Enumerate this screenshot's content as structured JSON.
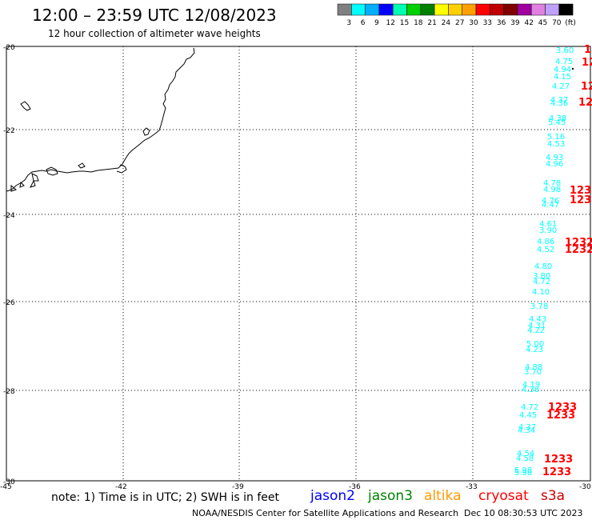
{
  "header": {
    "title": "12:00 – 23:59 UTC 12/08/2023",
    "subtitle": "12 hour collection of altimeter wave heights"
  },
  "colorbar": {
    "colors": [
      "#808080",
      "#00ffff",
      "#00b0ff",
      "#0000ff",
      "#00ffb0",
      "#00d000",
      "#008000",
      "#ffff00",
      "#ffd000",
      "#ffa000",
      "#ff0000",
      "#c00000",
      "#800000",
      "#a000a0",
      "#e080e0",
      "#c0a0ff",
      "#000000"
    ],
    "labels": [
      "3",
      "6",
      "9",
      "12",
      "15",
      "18",
      "21",
      "24",
      "27",
      "30",
      "33",
      "36",
      "39",
      "42",
      "45",
      "70",
      "(ft)"
    ]
  },
  "axes": {
    "lat_labels": [
      "-20",
      "-22",
      "-24",
      "-26",
      "-28",
      "-30"
    ],
    "lon_labels": [
      "-45",
      "-42",
      "-39",
      "-36",
      "-33",
      "-30"
    ]
  },
  "track_cyan": [
    {
      "text": "3.60",
      "color": "#00ffff"
    },
    {
      "text": "4.75",
      "color": "#00ffff"
    },
    {
      "text": "4.94",
      "color": "#00ffff"
    },
    {
      "text": "4.15",
      "color": "#00ffff"
    },
    {
      "text": "4.27",
      "color": "#00ffff"
    },
    {
      "text": "4.37",
      "color": "#00ffff"
    },
    {
      "text": "4.36",
      "color": "#00ffff"
    },
    {
      "text": "4.38",
      "color": "#00ffff"
    },
    {
      "text": "5.45",
      "color": "#00ffff"
    },
    {
      "text": "5.16",
      "color": "#00ffff"
    },
    {
      "text": "4.53",
      "color": "#00ffff"
    },
    {
      "text": "4.93",
      "color": "#00ffff"
    },
    {
      "text": "4.96",
      "color": "#00ffff"
    },
    {
      "text": "4.78",
      "color": "#00ffff"
    },
    {
      "text": "4.98",
      "color": "#00ffff"
    },
    {
      "text": "4.76",
      "color": "#00ffff"
    },
    {
      "text": "4.47",
      "color": "#00ffff"
    },
    {
      "text": "4.61",
      "color": "#00ffff"
    },
    {
      "text": "3.90",
      "color": "#00ffff"
    },
    {
      "text": "4.86",
      "color": "#00ffff"
    },
    {
      "text": "4.52",
      "color": "#00ffff"
    },
    {
      "text": "4.80",
      "color": "#00ffff"
    },
    {
      "text": "3.80",
      "color": "#00ffff"
    },
    {
      "text": "4.72",
      "color": "#00ffff"
    },
    {
      "text": "4.10",
      "color": "#00ffff"
    },
    {
      "text": "3.78",
      "color": "#00ffff"
    },
    {
      "text": "4.43",
      "color": "#00ffff"
    },
    {
      "text": "4.31",
      "color": "#00ffff"
    },
    {
      "text": "4.22",
      "color": "#00ffff"
    },
    {
      "text": "5.00",
      "color": "#00ffff"
    },
    {
      "text": "4.23",
      "color": "#00ffff"
    },
    {
      "text": "4.88",
      "color": "#00ffff"
    },
    {
      "text": "3.70",
      "color": "#00ffff"
    },
    {
      "text": "4.19",
      "color": "#00ffff"
    },
    {
      "text": "4.38",
      "color": "#00ffff"
    },
    {
      "text": "4.72",
      "color": "#00ffff"
    },
    {
      "text": "4.45",
      "color": "#00ffff"
    },
    {
      "text": "4.37",
      "color": "#00ffff"
    },
    {
      "text": "4.34",
      "color": "#00ffff"
    },
    {
      "text": "4.54",
      "color": "#00ffff"
    },
    {
      "text": "4.58",
      "color": "#00ffff"
    },
    {
      "text": "5.98",
      "color": "#00ffff"
    },
    {
      "text": "5.98",
      "color": "#00ffff"
    }
  ],
  "time_labels": [
    "1",
    "12",
    "12",
    "12",
    "1233",
    "1231",
    "1232",
    "1232",
    "1233",
    "1233",
    "1233",
    "1233"
  ],
  "footer": {
    "note": "note: 1) Time is in UTC; 2) SWH is in feet",
    "sats": [
      {
        "name": "jason2",
        "color": "#0000ff"
      },
      {
        "name": "jason3",
        "color": "#008000"
      },
      {
        "name": "altika",
        "color": "#ff9900"
      },
      {
        "name": "cryosat",
        "color": "#ff0000"
      },
      {
        "name": "s3a",
        "color": "#cc0000"
      }
    ],
    "credit": "NOAA/NESDIS Center for Satellite Applications and Research",
    "timestamp": "Dec 10 08:30:53 UTC 2023"
  }
}
